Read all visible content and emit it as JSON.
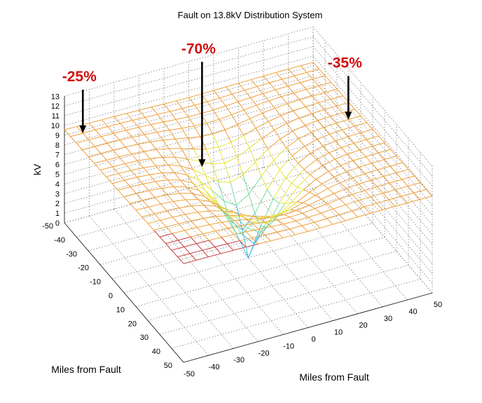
{
  "chart_data": {
    "type": "surface",
    "title": "Fault on 13.8kV Distribution System",
    "zlabel": "kV",
    "xlabel": "Miles from Fault",
    "ylabel": "Miles from Fault",
    "x_range": [
      -50,
      50
    ],
    "y_range": [
      -50,
      50
    ],
    "z_range": [
      0,
      13
    ],
    "x_ticks": [
      -50,
      -40,
      -30,
      -20,
      -10,
      0,
      10,
      20,
      30,
      40,
      50
    ],
    "y_ticks": [
      -50,
      -40,
      -30,
      -20,
      -10,
      0,
      10,
      20,
      30,
      40,
      50
    ],
    "z_ticks": [
      0,
      1,
      2,
      3,
      4,
      5,
      6,
      7,
      8,
      9,
      10,
      11,
      12,
      13
    ],
    "grid": true,
    "nominal_kv": 12.5,
    "fault_point": {
      "x": 0,
      "y": 0,
      "kv": 0
    },
    "annotations": [
      {
        "text": "-25%",
        "x": -45,
        "y": -45
      },
      {
        "text": "-70%",
        "x": -18,
        "y": -10
      },
      {
        "text": "-35%",
        "x": -10,
        "y": 45
      }
    ],
    "colormap": "hot"
  }
}
